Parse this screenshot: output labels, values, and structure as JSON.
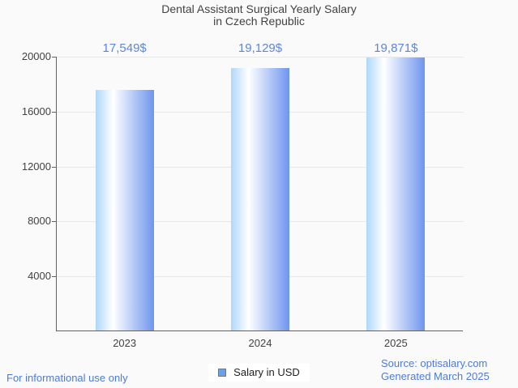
{
  "chart_data": {
    "type": "bar",
    "title": "Dental Assistant Surgical Yearly Salary",
    "subtitle": "in Czech Republic",
    "categories": [
      "2023",
      "2024",
      "2025"
    ],
    "series": [
      {
        "name": "Salary in USD",
        "values": [
          17549,
          19129,
          19871
        ]
      }
    ],
    "value_labels": [
      "17,549$",
      "19,129$",
      "19,871$"
    ],
    "ylabel": "",
    "xlabel": "",
    "ylim": [
      0,
      20000
    ],
    "yticks": [
      4000,
      8000,
      12000,
      16000,
      20000
    ],
    "grid": true,
    "legend_position": "bottom",
    "bar_gradient": [
      "#aed7fb",
      "#ffffff",
      "#6e95ee"
    ]
  },
  "legend": {
    "label": "Salary in USD",
    "swatch_color": "#68a1ee"
  },
  "footer": {
    "disclaimer": "For informational use only",
    "source": "Source: optisalary.com",
    "generated": "Generated March 2025"
  },
  "colors": {
    "background": "#fafafa",
    "title": "#424242",
    "tick_label": "#424242",
    "axis": "#616161",
    "grid": "#e8e8e8",
    "value_label": "#5b86e3",
    "footer_text": "#4b7be0"
  }
}
